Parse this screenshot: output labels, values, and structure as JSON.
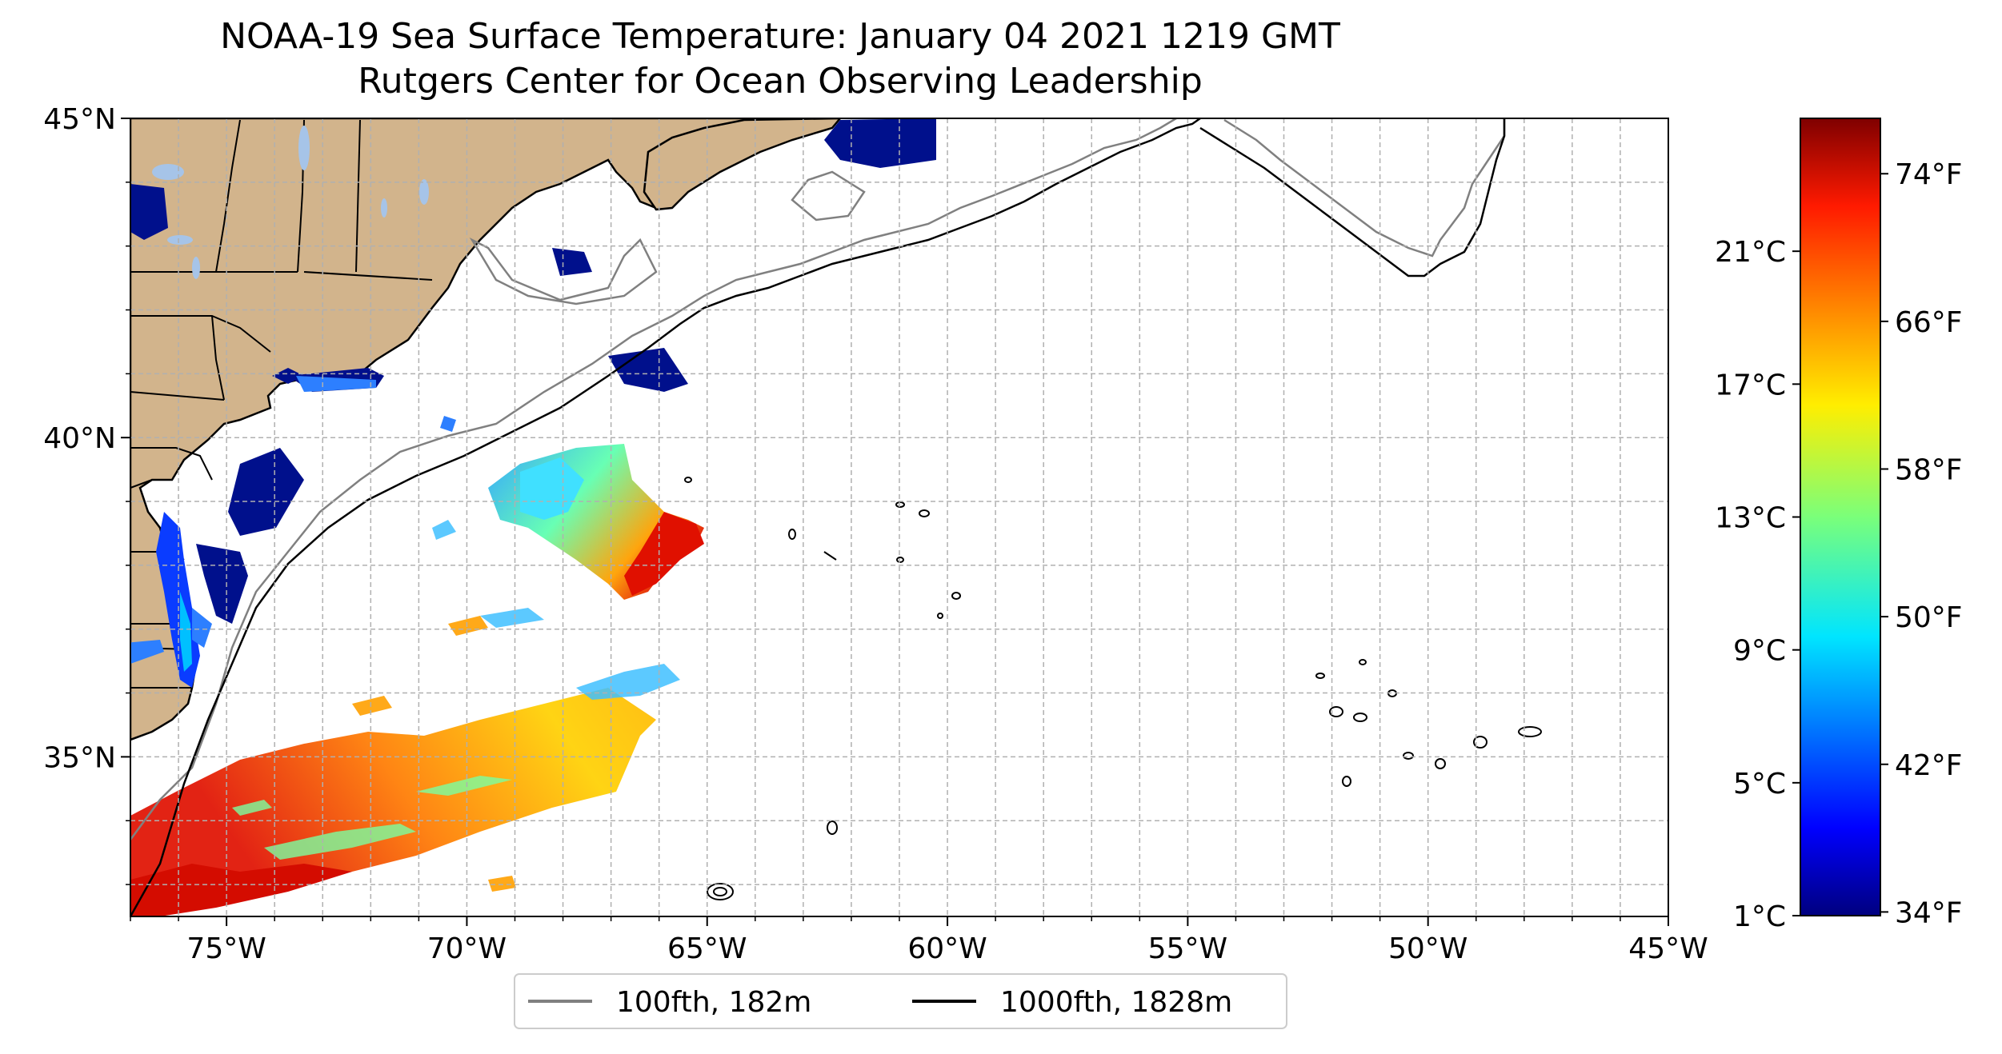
{
  "title": {
    "line1": "NOAA-19 Sea Surface Temperature: January 04 2021 1219 GMT",
    "line2": "Rutgers Center for Ocean Observing Leadership"
  },
  "map": {
    "lon_range": [
      -77,
      -45
    ],
    "lat_range": [
      32.5,
      45
    ],
    "x_tick_labels": [
      "75°W",
      "70°W",
      "65°W",
      "60°W",
      "55°W",
      "50°W",
      "45°W"
    ],
    "x_tick_values": [
      -75,
      -70,
      -65,
      -60,
      -55,
      -50,
      -45
    ],
    "y_tick_labels": [
      "35°N",
      "40°N",
      "45°N"
    ],
    "y_tick_values": [
      35,
      40,
      45
    ],
    "gridlines": true,
    "land_color": "#d2b48c",
    "lake_color": "#a6c4e8",
    "iso100_color": "#808080",
    "iso1000_color": "#000000"
  },
  "colorbar": {
    "cmap": "jet",
    "celsius_labels": [
      "1°C",
      "5°C",
      "9°C",
      "13°C",
      "17°C",
      "21°C"
    ],
    "celsius_values": [
      1,
      5,
      9,
      13,
      17,
      21
    ],
    "fahrenheit_labels": [
      "34°F",
      "42°F",
      "50°F",
      "58°F",
      "66°F",
      "74°F"
    ],
    "fahrenheit_values": [
      34,
      42,
      50,
      58,
      66,
      74
    ],
    "range_c": [
      1,
      25
    ]
  },
  "legend": {
    "item1": "100fth, 182m",
    "item2": "1000fth, 1828m",
    "placement": "bottom-center"
  }
}
